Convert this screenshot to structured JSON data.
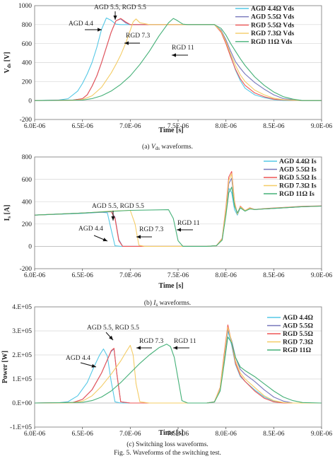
{
  "figure_caption": "Fig. 5.    Waveforms of the switching test.",
  "colors": {
    "AGD 4.4": "#55c8e6",
    "AGD 5.5": "#7777bb",
    "RGD 5.5": "#ee5555",
    "RGD 7.3": "#f4cc66",
    "RGD 11": "#44b077"
  },
  "chart_data": [
    {
      "id": "vds",
      "type": "line",
      "caption_pre": "(a) ",
      "caption_sym": "V",
      "caption_sub": "ds",
      "caption_post": " waveforms.",
      "ylabel": "Vds [V]",
      "ylabel_main": "V",
      "ylabel_sub": "ds",
      "ylabel_unit": " [V]",
      "xlabel": "Time [s]",
      "xlim": [
        6e-06,
        9e-06
      ],
      "ylim": [
        -200,
        1000
      ],
      "xticks": [
        "6.0E-06",
        "6.5E-06",
        "7.0E-06",
        "7.5E-06",
        "8.0E-06",
        "8.5E-06",
        "9.0E-06"
      ],
      "yticks": [
        "-200",
        "0",
        "200",
        "400",
        "600",
        "800",
        "1000"
      ],
      "legend": [
        "AGD 4.4Ω    Vds",
        "AGD 5.5Ω    Vds",
        "RGD 5.5Ω    Vds",
        "RGD 7.3Ω    Vds",
        "RGD 11Ω    Vds"
      ],
      "annotations": [
        "AGD 4.4",
        "AGD 5.5, RGD 5.5",
        "RGD 7.3",
        "RGD 11"
      ],
      "series": [
        {
          "name": "AGD 4.4",
          "x": [
            6.0,
            6.25,
            6.35,
            6.45,
            6.5,
            6.55,
            6.6,
            6.65,
            6.7,
            6.75,
            6.8,
            6.85,
            6.9,
            7.0,
            7.2,
            7.4,
            7.6,
            7.8,
            7.88,
            7.95,
            8.0,
            8.05,
            8.1,
            8.15,
            8.2,
            8.3,
            8.4,
            8.5,
            8.6,
            8.8,
            9.0
          ],
          "y": [
            0,
            5,
            20,
            100,
            180,
            280,
            400,
            560,
            750,
            870,
            845,
            805,
            800,
            800,
            800,
            800,
            800,
            800,
            800,
            730,
            620,
            470,
            320,
            210,
            130,
            60,
            30,
            10,
            0,
            0,
            0
          ]
        },
        {
          "name": "AGD 5.5",
          "x": [
            6.0,
            6.4,
            6.5,
            6.55,
            6.6,
            6.65,
            6.7,
            6.75,
            6.8,
            6.85,
            6.9,
            6.95,
            7.0,
            7.2,
            7.4,
            7.6,
            7.8,
            7.88,
            7.95,
            8.0,
            8.05,
            8.1,
            8.15,
            8.2,
            8.3,
            8.4,
            8.5,
            8.6,
            8.8,
            9.0
          ],
          "y": [
            0,
            5,
            20,
            60,
            150,
            260,
            400,
            560,
            720,
            840,
            860,
            820,
            800,
            800,
            800,
            800,
            800,
            800,
            740,
            640,
            520,
            410,
            340,
            280,
            190,
            120,
            60,
            20,
            0,
            0
          ]
        },
        {
          "name": "RGD 5.5",
          "x": [
            6.0,
            6.4,
            6.5,
            6.55,
            6.6,
            6.65,
            6.7,
            6.75,
            6.8,
            6.85,
            6.9,
            6.95,
            7.0,
            7.2,
            7.4,
            7.6,
            7.8,
            7.88,
            7.95,
            8.0,
            8.05,
            8.1,
            8.15,
            8.2,
            8.3,
            8.4,
            8.5,
            8.6,
            8.8,
            9.0
          ],
          "y": [
            0,
            5,
            20,
            60,
            150,
            260,
            400,
            560,
            720,
            840,
            865,
            830,
            800,
            800,
            800,
            800,
            800,
            800,
            720,
            600,
            460,
            330,
            230,
            160,
            80,
            40,
            15,
            5,
            0,
            0
          ]
        },
        {
          "name": "RGD 7.3",
          "x": [
            6.0,
            6.4,
            6.5,
            6.6,
            6.7,
            6.8,
            6.85,
            6.9,
            6.95,
            7.0,
            7.03,
            7.06,
            7.1,
            7.2,
            7.4,
            7.6,
            7.8,
            7.88,
            7.95,
            8.0,
            8.05,
            8.1,
            8.15,
            8.2,
            8.3,
            8.4,
            8.5,
            8.6,
            8.8,
            9.0
          ],
          "y": [
            0,
            2,
            10,
            50,
            140,
            290,
            380,
            480,
            600,
            740,
            830,
            860,
            820,
            800,
            800,
            800,
            800,
            800,
            730,
            620,
            490,
            370,
            270,
            200,
            110,
            60,
            25,
            8,
            0,
            0
          ]
        },
        {
          "name": "RGD 11",
          "x": [
            6.0,
            6.5,
            6.6,
            6.7,
            6.8,
            6.9,
            7.0,
            7.1,
            7.2,
            7.3,
            7.4,
            7.45,
            7.48,
            7.55,
            7.6,
            7.8,
            7.88,
            7.95,
            8.0,
            8.05,
            8.1,
            8.15,
            8.2,
            8.3,
            8.4,
            8.5,
            8.6,
            8.7,
            8.8,
            9.0
          ],
          "y": [
            0,
            5,
            20,
            50,
            100,
            170,
            260,
            380,
            520,
            680,
            820,
            865,
            850,
            805,
            800,
            800,
            800,
            760,
            690,
            600,
            520,
            440,
            370,
            250,
            160,
            90,
            40,
            15,
            0,
            0
          ]
        }
      ]
    },
    {
      "id": "is",
      "type": "line",
      "caption_pre": "(b) ",
      "caption_sym": "I",
      "caption_sub": "s",
      "caption_post": " waveforms.",
      "ylabel": "Is [A]",
      "ylabel_main": "I",
      "ylabel_sub": "s",
      "ylabel_unit": " [A]",
      "xlabel": "Time [s]",
      "xlim": [
        6e-06,
        9e-06
      ],
      "ylim": [
        -200,
        800
      ],
      "xticks": [
        "6.0E-06",
        "6.5E-06",
        "7.0E-06",
        "7.5E-06",
        "8.0E-06",
        "8.5E-06",
        "9.0E-06"
      ],
      "yticks": [
        "-200",
        "0",
        "200",
        "400",
        "600",
        "800"
      ],
      "legend": [
        "AGD 4.4Ω Is",
        "AGD 5.5Ω Is",
        "RGD 5.5Ω Is",
        "RGD 7.3Ω Is",
        "RGD 11Ω Is"
      ],
      "annotations": [
        "AGD 4.4",
        "AGD 5.5, RGD 5.5",
        "RGD 7.3",
        "RGD 11"
      ],
      "series": [
        {
          "name": "AGD 4.4",
          "x": [
            6.0,
            6.5,
            6.7,
            6.76,
            6.8,
            6.84,
            6.9,
            7.0,
            7.5,
            7.8,
            7.9,
            7.96,
            8.0,
            8.03,
            8.06,
            8.09,
            8.12,
            8.15,
            8.2,
            8.25,
            8.3,
            8.4,
            8.6,
            8.8,
            9.0
          ],
          "y": [
            280,
            295,
            305,
            300,
            150,
            5,
            0,
            0,
            0,
            0,
            5,
            60,
            300,
            520,
            480,
            330,
            280,
            345,
            315,
            340,
            330,
            335,
            345,
            355,
            360
          ]
        },
        {
          "name": "AGD 5.5",
          "x": [
            6.0,
            6.5,
            6.8,
            6.84,
            6.88,
            6.92,
            7.0,
            7.5,
            7.8,
            7.9,
            7.96,
            8.0,
            8.03,
            8.06,
            8.09,
            8.12,
            8.15,
            8.2,
            8.25,
            8.3,
            8.4,
            8.6,
            8.8,
            9.0
          ],
          "y": [
            280,
            298,
            310,
            260,
            60,
            0,
            0,
            0,
            0,
            5,
            60,
            300,
            560,
            610,
            380,
            290,
            350,
            320,
            340,
            330,
            335,
            345,
            355,
            360
          ]
        },
        {
          "name": "RGD 5.5",
          "x": [
            6.0,
            6.5,
            6.8,
            6.84,
            6.88,
            6.92,
            7.0,
            7.5,
            7.8,
            7.9,
            7.96,
            8.0,
            8.03,
            8.06,
            8.09,
            8.12,
            8.15,
            8.2,
            8.25,
            8.3,
            8.4,
            8.6,
            8.8,
            9.0
          ],
          "y": [
            280,
            298,
            312,
            250,
            50,
            0,
            0,
            0,
            0,
            5,
            70,
            350,
            620,
            670,
            400,
            290,
            360,
            320,
            345,
            330,
            338,
            348,
            358,
            362
          ]
        },
        {
          "name": "RGD 7.3",
          "x": [
            6.0,
            6.5,
            6.8,
            7.0,
            7.05,
            7.09,
            7.15,
            7.5,
            7.8,
            7.9,
            7.96,
            8.0,
            8.03,
            8.06,
            8.09,
            8.12,
            8.15,
            8.2,
            8.25,
            8.3,
            8.4,
            8.6,
            8.8,
            9.0
          ],
          "y": [
            280,
            298,
            315,
            322,
            200,
            10,
            0,
            0,
            0,
            5,
            65,
            330,
            590,
            650,
            390,
            290,
            355,
            320,
            342,
            330,
            336,
            346,
            356,
            360
          ]
        },
        {
          "name": "RGD 11",
          "x": [
            6.0,
            6.5,
            7.0,
            7.4,
            7.45,
            7.5,
            7.55,
            7.6,
            7.8,
            7.9,
            7.96,
            8.0,
            8.03,
            8.06,
            8.09,
            8.12,
            8.15,
            8.2,
            8.25,
            8.3,
            8.4,
            8.6,
            8.8,
            9.0
          ],
          "y": [
            280,
            298,
            322,
            328,
            250,
            50,
            0,
            0,
            0,
            5,
            55,
            280,
            480,
            530,
            360,
            300,
            345,
            315,
            335,
            330,
            335,
            345,
            355,
            360
          ]
        }
      ]
    },
    {
      "id": "power",
      "type": "line",
      "caption_pre": "(c) Switching loss waveforms.",
      "ylabel": "Power [W]",
      "xlabel": "Time [s]",
      "xlim": [
        6e-06,
        9e-06
      ],
      "ylim": [
        -100000,
        400000
      ],
      "xticks": [
        "6.0E-06",
        "6.5E-06",
        "7.0E-06",
        "7.5E-06",
        "8.0E-06",
        "8.5E-06",
        "9.0E-06"
      ],
      "yticks": [
        "-1.E+05",
        "0.E+00",
        "1.E+05",
        "2.E+05",
        "3.E+05",
        "4.E+05"
      ],
      "legend": [
        "AGD 4.4Ω",
        "AGD 5.5Ω",
        "RGD 5.5Ω",
        "RGD 7.3Ω",
        "RGD 11Ω"
      ],
      "annotations": [
        "AGD 4.4",
        "AGD 5.5, RGD 5.5",
        "RGD 7.3",
        "RGD 11"
      ],
      "series": [
        {
          "name": "AGD 4.4",
          "x": [
            6.0,
            6.25,
            6.35,
            6.45,
            6.55,
            6.62,
            6.68,
            6.72,
            6.76,
            6.8,
            6.84,
            6.9,
            7.0,
            7.8,
            7.88,
            7.94,
            7.98,
            8.02,
            8.06,
            8.1,
            8.15,
            8.2,
            8.3,
            8.4,
            8.5,
            8.6,
            8.7,
            9.0
          ],
          "y": [
            0,
            1000,
            6000,
            30000,
            85000,
            150000,
            200000,
            225000,
            195000,
            90000,
            5000,
            0,
            0,
            0,
            5000,
            60000,
            180000,
            300000,
            240000,
            160000,
            110000,
            90000,
            55000,
            25000,
            8000,
            2000,
            0,
            0
          ]
        },
        {
          "name": "AGD 5.5",
          "x": [
            6.0,
            6.4,
            6.5,
            6.6,
            6.7,
            6.76,
            6.8,
            6.83,
            6.86,
            6.9,
            7.0,
            7.8,
            7.88,
            7.94,
            7.98,
            8.02,
            8.06,
            8.1,
            8.15,
            8.2,
            8.3,
            8.4,
            8.5,
            8.6,
            8.7,
            9.0
          ],
          "y": [
            0,
            2000,
            15000,
            55000,
            125000,
            180000,
            215000,
            225000,
            120000,
            5000,
            0,
            0,
            5000,
            60000,
            180000,
            305000,
            260000,
            190000,
            140000,
            120000,
            90000,
            55000,
            25000,
            8000,
            0,
            0
          ]
        },
        {
          "name": "RGD 5.5",
          "x": [
            6.0,
            6.4,
            6.5,
            6.6,
            6.7,
            6.76,
            6.8,
            6.83,
            6.86,
            6.9,
            7.0,
            7.8,
            7.88,
            7.94,
            7.98,
            8.02,
            8.06,
            8.1,
            8.15,
            8.2,
            8.3,
            8.4,
            8.5,
            8.6,
            8.7,
            9.0
          ],
          "y": [
            0,
            2000,
            15000,
            55000,
            125000,
            180000,
            218000,
            228000,
            120000,
            5000,
            0,
            0,
            5000,
            65000,
            200000,
            325000,
            250000,
            165000,
            115000,
            90000,
            50000,
            20000,
            5000,
            0,
            0,
            0
          ]
        },
        {
          "name": "RGD 7.3",
          "x": [
            6.0,
            6.4,
            6.5,
            6.6,
            6.7,
            6.8,
            6.9,
            6.96,
            7.0,
            7.03,
            7.06,
            7.1,
            7.2,
            7.8,
            7.88,
            7.94,
            7.98,
            8.02,
            8.06,
            8.1,
            8.15,
            8.2,
            8.3,
            8.4,
            8.5,
            8.6,
            8.7,
            9.0
          ],
          "y": [
            0,
            1000,
            8000,
            30000,
            70000,
            120000,
            175000,
            215000,
            240000,
            200000,
            80000,
            5000,
            0,
            0,
            5000,
            62000,
            190000,
            315000,
            255000,
            175000,
            125000,
            100000,
            65000,
            30000,
            10000,
            2000,
            0,
            0
          ]
        },
        {
          "name": "RGD 11",
          "x": [
            6.0,
            6.5,
            6.6,
            6.7,
            6.8,
            6.9,
            7.0,
            7.1,
            7.2,
            7.3,
            7.38,
            7.42,
            7.46,
            7.5,
            7.54,
            7.6,
            7.8,
            7.88,
            7.94,
            7.98,
            8.02,
            8.06,
            8.1,
            8.15,
            8.2,
            8.3,
            8.4,
            8.5,
            8.6,
            8.7,
            8.8,
            9.0
          ],
          "y": [
            0,
            3000,
            10000,
            25000,
            50000,
            85000,
            125000,
            165000,
            200000,
            230000,
            245000,
            235000,
            190000,
            100000,
            10000,
            0,
            0,
            4000,
            50000,
            160000,
            275000,
            250000,
            190000,
            150000,
            135000,
            110000,
            80000,
            50000,
            25000,
            10000,
            2000,
            0
          ]
        }
      ]
    }
  ]
}
